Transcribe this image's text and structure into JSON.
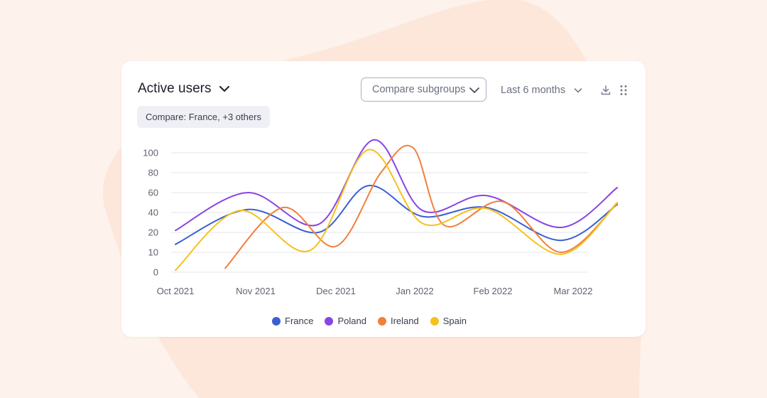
{
  "header": {
    "title": "Active users",
    "compare_button": "Compare subgroups",
    "period": "Last 6 months",
    "chip": "Compare: France, +3 others"
  },
  "colors": {
    "France": "#3a5fd1",
    "Poland": "#8a44e3",
    "Ireland": "#f07f3c",
    "Spain": "#f5c11d",
    "grid": "#e6e6ea"
  },
  "chart_data": {
    "type": "line",
    "title": "Active users",
    "xlabel": "",
    "ylabel": "",
    "x_ticks": [
      "Oct 2021",
      "Nov 2021",
      "Dec 2021",
      "Jan 2022",
      "Feb 2022",
      "Mar 2022"
    ],
    "y_ticks": [
      100,
      80,
      60,
      40,
      20,
      10,
      0
    ],
    "ylim": [
      0,
      100
    ],
    "grid": true,
    "legend_position": "bottom",
    "series": [
      {
        "name": "France",
        "color": "#3a5fd1",
        "points": [
          [
            0,
            14
          ],
          [
            0.9,
            43
          ],
          [
            1.78,
            20
          ],
          [
            2.41,
            67
          ],
          [
            3.1,
            36
          ],
          [
            3.92,
            45
          ],
          [
            4.85,
            16
          ],
          [
            5.55,
            48
          ]
        ]
      },
      {
        "name": "Poland",
        "color": "#8a44e3",
        "points": [
          [
            0,
            22
          ],
          [
            0.9,
            60
          ],
          [
            1.78,
            28
          ],
          [
            2.48,
            113
          ],
          [
            3.1,
            42
          ],
          [
            3.92,
            57
          ],
          [
            4.85,
            25
          ],
          [
            5.55,
            65
          ]
        ]
      },
      {
        "name": "Ireland",
        "color": "#f07f3c",
        "points": [
          [
            0.62,
            2
          ],
          [
            1.34,
            45
          ],
          [
            2.0,
            13
          ],
          [
            2.57,
            80
          ],
          [
            2.98,
            105
          ],
          [
            3.38,
            27
          ],
          [
            4.12,
            51
          ],
          [
            4.85,
            10
          ],
          [
            5.55,
            49
          ]
        ]
      },
      {
        "name": "Spain",
        "color": "#f5c11d",
        "points": [
          [
            0,
            1
          ],
          [
            0.8,
            42
          ],
          [
            1.68,
            11
          ],
          [
            2.41,
            103
          ],
          [
            3.1,
            29
          ],
          [
            3.92,
            44
          ],
          [
            4.85,
            9
          ],
          [
            5.55,
            50
          ]
        ]
      }
    ]
  }
}
